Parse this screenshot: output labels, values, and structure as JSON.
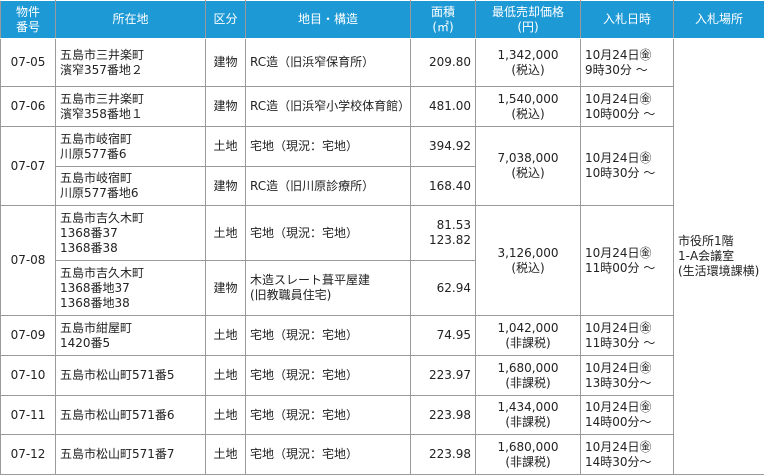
{
  "table": {
    "header": [
      "物件\n番号",
      "所在地",
      "区分",
      "地目・構造",
      "面積\n(㎡)",
      "最低売却価格\n(円)",
      "入札日時",
      "入札場所"
    ],
    "rows": [
      [
        "07-05",
        "五島市三井楽町\n濱窄357番地２",
        "建物",
        "RC造（旧浜窄保育所）",
        "209.80",
        "1,342,000\n(税込)",
        "10月24日㊎\n9時30分 ～",
        "市役所1階\n1-A会議室\n(生活環境課横)"
      ],
      [
        "07-06",
        "五島市三井楽町\n濱窄358番地１",
        "建物",
        "RC造（旧浜窄小学校体育館）",
        "481.00",
        "1,540,000\n(税込)",
        "10月24日㊎\n10時00分 ～"
      ],
      [
        "07-07",
        "五島市岐宿町\n川原577番6",
        "土地",
        "宅地（現況：宅地）",
        "394.92",
        "7,038,000\n(税込)",
        "10月24日㊎\n10時30分 ～"
      ],
      [
        "五島市岐宿町\n川原577番地6",
        "建物",
        "RC造（旧川原診療所）",
        "168.40"
      ],
      [
        "07-08",
        "五島市吉久木町\n1368番37\n1368番38",
        "土地",
        "宅地（現況：宅地）",
        "81.53\n123.82",
        "3,126,000\n(税込)",
        "10月24日㊎\n11時00分 ～"
      ],
      [
        "五島市吉久木町\n1368番地37\n1368番地38",
        "建物",
        "木造スレート葺平屋建\n(旧教職員住宅)",
        "62.94"
      ],
      [
        "07-09",
        "五島市紺屋町\n1420番5",
        "土地",
        "宅地（現況：宅地）",
        "74.95",
        "1,042,000\n(非課税)",
        "10月24日㊎\n11時30分 ～"
      ],
      [
        "07-10",
        "五島市松山町571番5",
        "土地",
        "宅地（現況：宅地）",
        "223.97",
        "1,680,000\n(非課税)",
        "10月24日㊎\n13時30分～"
      ],
      [
        "07-11",
        "五島市松山町571番6",
        "土地",
        "宅地（現況：宅地）",
        "223.98",
        "1,434,000\n(非課税)",
        "10月24日㊎\n14時00分～"
      ],
      [
        "07-12",
        "五島市松山町571番7",
        "土地",
        "宅地（現況：宅地）",
        "223.98",
        "1,680,000\n(非課税)",
        "10月24日㊎\n14時30分～"
      ]
    ]
  }
}
